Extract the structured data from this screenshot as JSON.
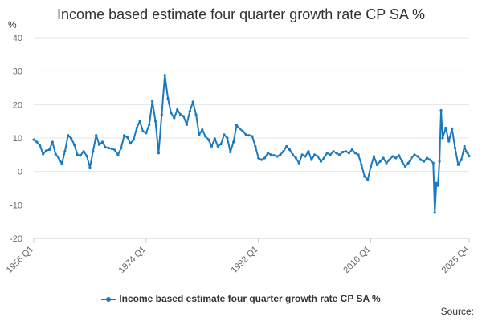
{
  "chart_data": {
    "type": "line",
    "title": "Income based estimate four quarter growth rate CP SA %",
    "ylabel": "%",
    "xlabel": "",
    "ylim": [
      -20,
      40
    ],
    "yticks": [
      -20,
      -10,
      0,
      10,
      20,
      30,
      40
    ],
    "xlim": [
      1956.0,
      2025.75
    ],
    "xticks": [
      {
        "value": 1956.0,
        "label": "1956 Q1"
      },
      {
        "value": 1974.0,
        "label": "1974 Q1"
      },
      {
        "value": 1992.0,
        "label": "1992 Q1"
      },
      {
        "value": 2010.0,
        "label": "2010 Q1"
      },
      {
        "value": 2025.75,
        "label": "2025 Q4"
      }
    ],
    "grid": true,
    "legend_position": "bottom",
    "series": [
      {
        "name": "Income based estimate four quarter growth rate CP SA %",
        "color": "#1a7ac0",
        "points": [
          [
            1956.0,
            9.5
          ],
          [
            1956.5,
            8.8
          ],
          [
            1957.0,
            7.7
          ],
          [
            1957.5,
            5.2
          ],
          [
            1958.0,
            6.2
          ],
          [
            1958.5,
            6.5
          ],
          [
            1959.0,
            8.8
          ],
          [
            1959.5,
            5.2
          ],
          [
            1960.0,
            4.0
          ],
          [
            1960.5,
            2.3
          ],
          [
            1961.0,
            6.0
          ],
          [
            1961.5,
            10.8
          ],
          [
            1962.0,
            9.9
          ],
          [
            1962.5,
            8.0
          ],
          [
            1963.0,
            5.0
          ],
          [
            1963.5,
            4.8
          ],
          [
            1964.0,
            6.0
          ],
          [
            1964.5,
            4.6
          ],
          [
            1965.0,
            1.2
          ],
          [
            1965.5,
            6.0
          ],
          [
            1966.0,
            10.8
          ],
          [
            1966.5,
            8.0
          ],
          [
            1967.0,
            8.8
          ],
          [
            1967.5,
            7.2
          ],
          [
            1968.0,
            7.0
          ],
          [
            1968.5,
            6.8
          ],
          [
            1969.0,
            6.4
          ],
          [
            1969.5,
            5.0
          ],
          [
            1970.0,
            7.0
          ],
          [
            1970.5,
            10.8
          ],
          [
            1971.0,
            10.2
          ],
          [
            1971.5,
            8.4
          ],
          [
            1972.0,
            9.5
          ],
          [
            1972.5,
            13.0
          ],
          [
            1973.0,
            15.0
          ],
          [
            1973.5,
            12.0
          ],
          [
            1974.0,
            11.5
          ],
          [
            1974.5,
            14.0
          ],
          [
            1975.0,
            21.0
          ],
          [
            1975.5,
            15.0
          ],
          [
            1976.0,
            5.5
          ],
          [
            1976.5,
            17.0
          ],
          [
            1977.0,
            28.8
          ],
          [
            1977.5,
            21.8
          ],
          [
            1978.0,
            17.5
          ],
          [
            1978.5,
            16.0
          ],
          [
            1979.0,
            18.5
          ],
          [
            1979.5,
            17.0
          ],
          [
            1980.0,
            16.5
          ],
          [
            1980.5,
            14.0
          ],
          [
            1981.0,
            18.0
          ],
          [
            1981.5,
            20.8
          ],
          [
            1982.0,
            17.0
          ],
          [
            1982.5,
            11.0
          ],
          [
            1983.0,
            12.5
          ],
          [
            1983.5,
            10.5
          ],
          [
            1984.0,
            9.5
          ],
          [
            1984.5,
            7.5
          ],
          [
            1985.0,
            9.8
          ],
          [
            1985.5,
            7.5
          ],
          [
            1986.0,
            8.2
          ],
          [
            1986.5,
            11.0
          ],
          [
            1987.0,
            10.0
          ],
          [
            1987.5,
            5.8
          ],
          [
            1988.0,
            8.8
          ],
          [
            1988.5,
            13.8
          ],
          [
            1989.0,
            12.8
          ],
          [
            1989.5,
            12.0
          ],
          [
            1990.0,
            11.0
          ],
          [
            1990.5,
            10.8
          ],
          [
            1991.0,
            10.5
          ],
          [
            1991.5,
            7.5
          ],
          [
            1992.0,
            4.0
          ],
          [
            1992.5,
            3.5
          ],
          [
            1993.0,
            4.0
          ],
          [
            1993.5,
            5.5
          ],
          [
            1994.0,
            5.0
          ],
          [
            1994.5,
            4.8
          ],
          [
            1995.0,
            4.5
          ],
          [
            1995.5,
            5.0
          ],
          [
            1996.0,
            6.0
          ],
          [
            1996.5,
            7.5
          ],
          [
            1997.0,
            6.5
          ],
          [
            1997.5,
            5.0
          ],
          [
            1998.0,
            4.0
          ],
          [
            1998.5,
            2.5
          ],
          [
            1999.0,
            5.0
          ],
          [
            1999.5,
            4.5
          ],
          [
            2000.0,
            6.0
          ],
          [
            2000.5,
            3.5
          ],
          [
            2001.0,
            5.0
          ],
          [
            2001.5,
            4.5
          ],
          [
            2002.0,
            3.0
          ],
          [
            2002.5,
            4.0
          ],
          [
            2003.0,
            5.5
          ],
          [
            2003.5,
            5.0
          ],
          [
            2004.0,
            6.0
          ],
          [
            2004.5,
            5.5
          ],
          [
            2005.0,
            5.0
          ],
          [
            2005.5,
            5.8
          ],
          [
            2006.0,
            6.0
          ],
          [
            2006.5,
            5.5
          ],
          [
            2007.0,
            6.5
          ],
          [
            2007.5,
            5.5
          ],
          [
            2008.0,
            5.0
          ],
          [
            2008.5,
            2.0
          ],
          [
            2009.0,
            -1.5
          ],
          [
            2009.5,
            -2.5
          ],
          [
            2010.0,
            1.5
          ],
          [
            2010.5,
            4.5
          ],
          [
            2011.0,
            2.0
          ],
          [
            2011.5,
            3.0
          ],
          [
            2012.0,
            4.0
          ],
          [
            2012.5,
            2.5
          ],
          [
            2013.0,
            3.5
          ],
          [
            2013.5,
            4.5
          ],
          [
            2014.0,
            4.0
          ],
          [
            2014.5,
            4.8
          ],
          [
            2015.0,
            3.0
          ],
          [
            2015.5,
            1.5
          ],
          [
            2016.0,
            2.5
          ],
          [
            2016.5,
            4.0
          ],
          [
            2017.0,
            5.0
          ],
          [
            2017.5,
            4.5
          ],
          [
            2018.0,
            3.5
          ],
          [
            2018.5,
            3.0
          ],
          [
            2019.0,
            4.0
          ],
          [
            2019.5,
            3.5
          ],
          [
            2020.0,
            2.5
          ],
          [
            2020.25,
            -12.3
          ],
          [
            2020.5,
            -3.5
          ],
          [
            2020.75,
            -4.2
          ],
          [
            2021.0,
            3.0
          ],
          [
            2021.25,
            18.3
          ],
          [
            2021.5,
            10.0
          ],
          [
            2022.0,
            13.0
          ],
          [
            2022.5,
            9.0
          ],
          [
            2023.0,
            12.8
          ],
          [
            2023.5,
            7.0
          ],
          [
            2024.0,
            2.0
          ],
          [
            2024.5,
            3.5
          ],
          [
            2025.0,
            7.5
          ],
          [
            2025.25,
            6.0
          ],
          [
            2025.5,
            5.5
          ],
          [
            2025.75,
            4.6
          ]
        ]
      }
    ]
  },
  "legend": {
    "label": "Income based estimate four quarter growth rate CP SA %"
  },
  "footer": {
    "source_label": "Source:"
  }
}
